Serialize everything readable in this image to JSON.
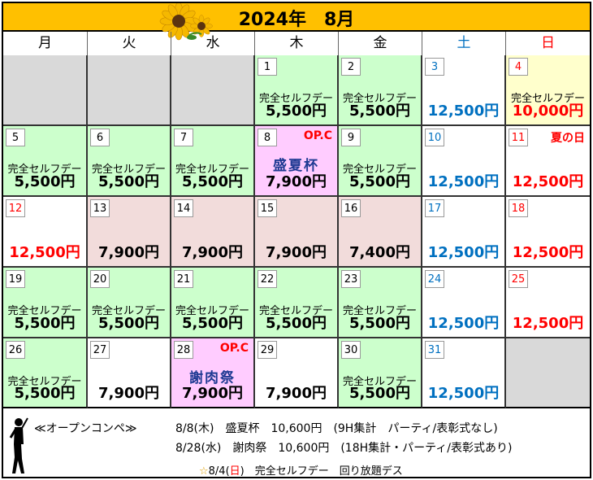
{
  "title": "2024年　8月",
  "weekdays": [
    {
      "label": "月",
      "color": "#000000"
    },
    {
      "label": "火",
      "color": "#000000"
    },
    {
      "label": "水",
      "color": "#000000"
    },
    {
      "label": "木",
      "color": "#000000"
    },
    {
      "label": "金",
      "color": "#000000"
    },
    {
      "label": "土",
      "color": "#0070c0"
    },
    {
      "label": "日",
      "color": "#ff0000"
    }
  ],
  "colors": {
    "green": "#ccffcc",
    "pink": "#f2dcdb",
    "lavender": "#ffccff",
    "lightyellow": "#ffffcc",
    "gray": "#d9d9d9",
    "white": "#ffffff",
    "blue_text": "#0070c0",
    "red_text": "#ff0000",
    "black_text": "#000000"
  },
  "weeks": [
    [
      {
        "day": "",
        "bg": "gray"
      },
      {
        "day": "",
        "bg": "gray"
      },
      {
        "day": "",
        "bg": "gray"
      },
      {
        "day": "1",
        "bg": "green",
        "label": "完全セルフデー",
        "price": "5,500円",
        "price_color": "black_text"
      },
      {
        "day": "2",
        "bg": "green",
        "label": "完全セルフデー",
        "price": "5,500円",
        "price_color": "black_text"
      },
      {
        "day": "3",
        "day_color": "blue_text",
        "bg": "white",
        "price": "12,500円",
        "price_color": "blue_text"
      },
      {
        "day": "4",
        "day_color": "red_text",
        "bg": "lightyellow",
        "label": "完全セルフデー",
        "price": "10,000円",
        "price_color": "red_text"
      }
    ],
    [
      {
        "day": "5",
        "bg": "green",
        "label": "完全セルフデー",
        "price": "5,500円",
        "price_color": "black_text"
      },
      {
        "day": "6",
        "bg": "green",
        "label": "完全セルフデー",
        "price": "5,500円",
        "price_color": "black_text"
      },
      {
        "day": "7",
        "bg": "green",
        "label": "完全セルフデー",
        "price": "5,500円",
        "price_color": "black_text"
      },
      {
        "day": "8",
        "bg": "lavender",
        "tag": "OP.C",
        "event": "盛夏杯",
        "price": "7,900円",
        "price_color": "black_text"
      },
      {
        "day": "9",
        "bg": "green",
        "label": "完全セルフデー",
        "price": "5,500円",
        "price_color": "black_text"
      },
      {
        "day": "10",
        "day_color": "blue_text",
        "bg": "white",
        "price": "12,500円",
        "price_color": "blue_text"
      },
      {
        "day": "11",
        "day_color": "red_text",
        "bg": "white",
        "tag": "夏の日",
        "price": "12,500円",
        "price_color": "red_text"
      }
    ],
    [
      {
        "day": "12",
        "day_color": "red_text",
        "bg": "white",
        "price": "12,500円",
        "price_color": "red_text"
      },
      {
        "day": "13",
        "bg": "pink",
        "price": "7,900円",
        "price_color": "black_text"
      },
      {
        "day": "14",
        "bg": "pink",
        "price": "7,900円",
        "price_color": "black_text"
      },
      {
        "day": "15",
        "bg": "pink",
        "price": "7,900円",
        "price_color": "black_text"
      },
      {
        "day": "16",
        "bg": "pink",
        "price": "7,400円",
        "price_color": "black_text"
      },
      {
        "day": "17",
        "day_color": "blue_text",
        "bg": "white",
        "price": "12,500円",
        "price_color": "blue_text"
      },
      {
        "day": "18",
        "day_color": "red_text",
        "bg": "white",
        "price": "12,500円",
        "price_color": "red_text"
      }
    ],
    [
      {
        "day": "19",
        "bg": "green",
        "label": "完全セルフデー",
        "price": "5,500円",
        "price_color": "black_text"
      },
      {
        "day": "20",
        "bg": "green",
        "label": "完全セルフデー",
        "price": "5,500円",
        "price_color": "black_text"
      },
      {
        "day": "21",
        "bg": "green",
        "label": "完全セルフデー",
        "price": "5,500円",
        "price_color": "black_text"
      },
      {
        "day": "22",
        "bg": "green",
        "label": "完全セルフデー",
        "price": "5,500円",
        "price_color": "black_text"
      },
      {
        "day": "23",
        "bg": "green",
        "label": "完全セルフデー",
        "price": "5,500円",
        "price_color": "black_text"
      },
      {
        "day": "24",
        "day_color": "blue_text",
        "bg": "white",
        "price": "12,500円",
        "price_color": "blue_text"
      },
      {
        "day": "25",
        "day_color": "red_text",
        "bg": "white",
        "price": "12,500円",
        "price_color": "red_text"
      }
    ],
    [
      {
        "day": "26",
        "bg": "green",
        "label": "完全セルフデー",
        "price": "5,500円",
        "price_color": "black_text"
      },
      {
        "day": "27",
        "bg": "white",
        "price": "7,900円",
        "price_color": "black_text"
      },
      {
        "day": "28",
        "bg": "lavender",
        "tag": "OP.C",
        "event": "謝肉祭",
        "price": "7,900円",
        "price_color": "black_text"
      },
      {
        "day": "29",
        "bg": "white",
        "price": "7,900円",
        "price_color": "black_text"
      },
      {
        "day": "30",
        "bg": "green",
        "label": "完全セルフデー",
        "price": "5,500円",
        "price_color": "black_text"
      },
      {
        "day": "31",
        "day_color": "blue_text",
        "bg": "white",
        "price": "12,500円",
        "price_color": "blue_text"
      },
      {
        "day": "",
        "bg": "gray"
      }
    ]
  ],
  "footer": {
    "heading": "≪オープンコンペ≫",
    "line1": "8/8(木)　盛夏杯　10,600円　(9H集計　パーティ/表彰式なし)",
    "line2": "8/28(水)　謝肉祭　10,600円　(18H集計・パーティ/表彰式あり)",
    "note_star": "☆",
    "note_a": "8/4(",
    "note_sun": "日",
    "note_b": ")　完全セルフデー　回り放題デス"
  }
}
